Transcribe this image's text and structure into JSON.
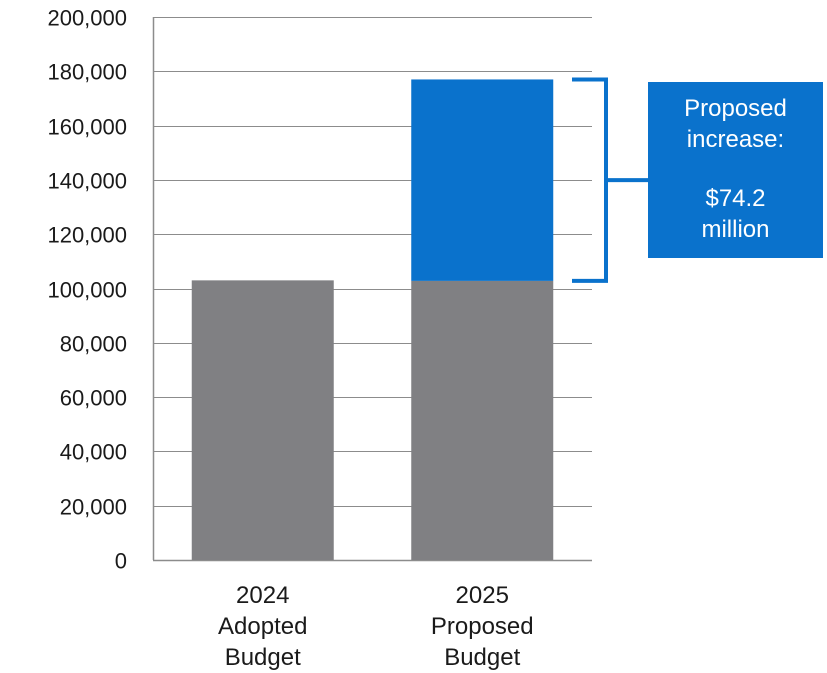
{
  "chart_data": {
    "type": "bar",
    "stacked": true,
    "categories": [
      [
        "2024",
        "Adopted",
        "Budget"
      ],
      [
        "2025",
        "Proposed",
        "Budget"
      ]
    ],
    "series": [
      {
        "values": [
          103000,
          102800
        ],
        "color": "#808083"
      },
      {
        "values": [
          0,
          74200
        ],
        "color": "#0a72cc"
      }
    ],
    "ylim": [
      0,
      200000
    ],
    "yticks": [
      0,
      20000,
      40000,
      60000,
      80000,
      100000,
      120000,
      140000,
      160000,
      180000,
      200000
    ],
    "ytick_labels": [
      "0",
      "20,000",
      "40,000",
      "60,000",
      "80,000",
      "100,000",
      "120,000",
      "140,000",
      "160,000",
      "180,000",
      "200,000"
    ],
    "grid": true,
    "title": "",
    "xlabel": "",
    "ylabel": ""
  },
  "annotation": {
    "line1": "Proposed",
    "line2": "increase:",
    "line3": "$74.2",
    "line4": "million",
    "color": "#0a72cc"
  }
}
